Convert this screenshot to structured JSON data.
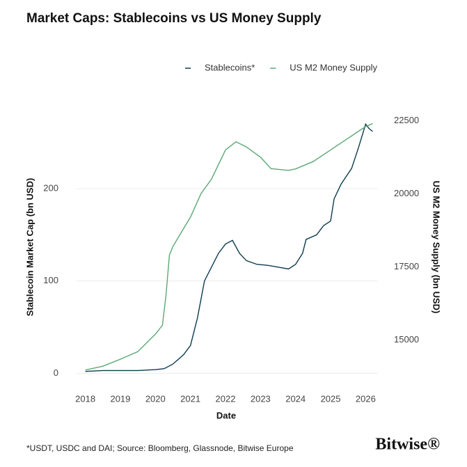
{
  "chart_data": {
    "type": "line",
    "title": "Market Caps: Stablecoins vs US Money Supply",
    "x_label": "Date",
    "y_label": "Stablecoin Market Cap (bn USD)",
    "y2_label": "US M2 Money Supply (bn USD)",
    "footnote": "*USDT, USDC and DAI; Source: Bloomberg, Glassnode, Bitwise Europe",
    "brand": "Bitwise®",
    "xlim": [
      2017.75,
      2026.35
    ],
    "xticks": [
      2018,
      2019,
      2020,
      2021,
      2022,
      2023,
      2024,
      2025,
      2026
    ],
    "ylim": [
      -5,
      280
    ],
    "yticks": [
      0,
      100,
      200
    ],
    "y2lim": [
      13700,
      22700
    ],
    "y2ticks": [
      15000,
      17500,
      20000,
      22500
    ],
    "grid": true,
    "legend": "top",
    "series": [
      {
        "name": "Stablecoins*",
        "color": "#0d3b4f",
        "axis": "y",
        "x": [
          2018.0,
          2018.5,
          2019.0,
          2019.5,
          2020.0,
          2020.25,
          2020.5,
          2020.8,
          2021.0,
          2021.2,
          2021.4,
          2021.6,
          2021.8,
          2022.0,
          2022.2,
          2022.4,
          2022.6,
          2022.9,
          2023.2,
          2023.5,
          2023.8,
          2024.0,
          2024.2,
          2024.3,
          2024.6,
          2024.8,
          2025.0,
          2025.1,
          2025.3,
          2025.6,
          2025.8,
          2026.0,
          2026.1,
          2026.2
        ],
        "values": [
          2,
          3,
          3,
          3,
          4,
          5,
          10,
          20,
          30,
          60,
          100,
          115,
          130,
          140,
          144,
          130,
          122,
          118,
          117,
          115,
          113,
          118,
          130,
          145,
          150,
          160,
          165,
          189,
          205,
          222,
          245,
          270,
          265,
          262
        ]
      },
      {
        "name": "US M2 Money Supply",
        "color": "#5aa874",
        "axis": "y2",
        "x": [
          2018.0,
          2018.5,
          2019.0,
          2019.5,
          2020.0,
          2020.2,
          2020.3,
          2020.4,
          2020.5,
          2021.0,
          2021.3,
          2021.6,
          2022.0,
          2022.3,
          2022.6,
          2023.0,
          2023.3,
          2023.8,
          2024.0,
          2024.5,
          2025.0,
          2025.5,
          2026.0,
          2026.2
        ],
        "values": [
          13970,
          14100,
          14340,
          14600,
          15200,
          15500,
          16500,
          17900,
          18200,
          19200,
          20000,
          20500,
          21500,
          21780,
          21600,
          21250,
          20860,
          20800,
          20850,
          21100,
          21500,
          21900,
          22300,
          22400
        ]
      }
    ]
  }
}
